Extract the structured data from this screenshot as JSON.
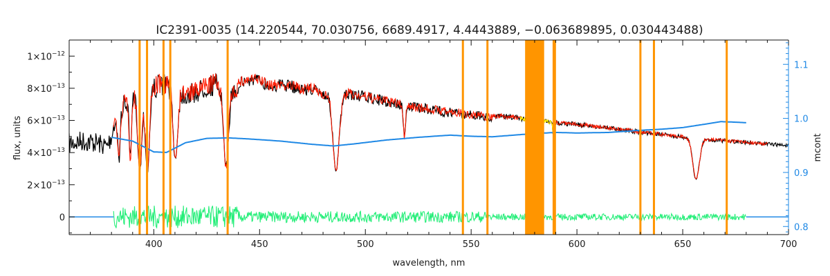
{
  "chart_data": {
    "type": "line",
    "title": "IC2391-0035    (14.220544, 70.030756, 6689.4917, 4.4443889, −0.063689895, 0.030443488)",
    "xlabel": "wavelength, nm",
    "ylabel": "flux, units",
    "y2label": "mcont",
    "xlim": [
      360,
      700
    ],
    "ylim": [
      -1.1e-13,
      1.1e-12
    ],
    "y2lim": [
      0.785,
      1.145
    ],
    "x_ticks": [
      "400",
      "450",
      "500",
      "550",
      "600",
      "650",
      "700"
    ],
    "y_ticks": [
      {
        "mant": "0",
        "exp": ""
      },
      {
        "mant": "2×10",
        "exp": "−13"
      },
      {
        "mant": "4×10",
        "exp": "−13"
      },
      {
        "mant": "6×10",
        "exp": "−13"
      },
      {
        "mant": "8×10",
        "exp": "−13"
      },
      {
        "mant": "1×10",
        "exp": "−12"
      }
    ],
    "y2_ticks": [
      "0.8",
      "0.9",
      "1.0",
      "1.1"
    ],
    "grid": false,
    "colors": {
      "observed": "#000000",
      "model": "#ff1a00",
      "residual": "#22ee77",
      "continuum": "#1e88e5",
      "mask": "#ff9500",
      "highlight": "#ffff00",
      "axis_right": "#1e88e5"
    },
    "masked_lines_nm": [
      393.3,
      396.8,
      404.6,
      407.8,
      434.9,
      546.1,
      557.7,
      588.99,
      589.6,
      630.0,
      636.4,
      670.8
    ],
    "masked_band_nm": [
      575.5,
      584.5
    ],
    "absorption_lines": [
      {
        "x": 383.5,
        "depth": 0.45,
        "w": 0.8
      },
      {
        "x": 388.9,
        "depth": 0.5,
        "w": 0.8
      },
      {
        "x": 393.4,
        "depth": 0.62,
        "w": 1.3
      },
      {
        "x": 397.0,
        "depth": 0.65,
        "w": 1.3
      },
      {
        "x": 410.2,
        "depth": 0.55,
        "w": 1.5
      },
      {
        "x": 434.1,
        "depth": 0.62,
        "w": 1.6
      },
      {
        "x": 486.1,
        "depth": 0.62,
        "w": 2.0
      },
      {
        "x": 518.4,
        "depth": 0.28,
        "w": 0.7
      },
      {
        "x": 589.0,
        "depth": 0.18,
        "w": 0.5
      },
      {
        "x": 656.3,
        "depth": 0.52,
        "w": 2.2
      }
    ],
    "series": [
      {
        "key": "observed",
        "x": [
          360,
          366,
          372,
          378,
          381,
          386,
          390,
          395,
          400,
          404,
          410,
          415,
          420,
          425,
          430,
          436,
          440,
          445,
          450,
          455,
          460,
          465,
          470,
          475,
          480,
          485,
          488,
          492,
          500,
          510,
          520,
          530,
          540,
          550,
          560,
          570,
          580,
          590,
          600,
          610,
          620,
          630,
          640,
          650,
          660,
          670,
          680,
          690,
          700
        ],
        "y": [
          5.2e-13,
          5.4e-13,
          5.3e-13,
          5e-13,
          6.2e-13,
          7.6e-13,
          8e-13,
          8.2e-13,
          8.7e-13,
          9e-13,
          8.7e-13,
          8.2e-13,
          8.4e-13,
          8.8e-13,
          9e-13,
          8.4e-13,
          8.7e-13,
          8.9e-13,
          8.9e-13,
          8.5e-13,
          8.6e-13,
          8.5e-13,
          8.3e-13,
          8.3e-13,
          8e-13,
          7.8e-13,
          7.7e-13,
          8e-13,
          7.8e-13,
          7.5e-13,
          7.2e-13,
          7e-13,
          6.8e-13,
          6.65e-13,
          6.45e-13,
          6.35e-13,
          6.15e-13,
          6e-13,
          5.9e-13,
          5.75e-13,
          5.6e-13,
          5.4e-13,
          5.25e-13,
          5.1e-13,
          4.95e-13,
          4.85e-13,
          4.75e-13,
          4.65e-13,
          4.55e-13
        ]
      },
      {
        "key": "continuum",
        "axis": "right",
        "x": [
          380,
          390,
          400,
          406,
          415,
          425,
          435,
          445,
          460,
          475,
          485,
          495,
          510,
          525,
          540,
          550,
          560,
          570,
          580,
          590,
          600,
          615,
          630,
          640,
          650,
          660,
          668,
          675,
          680
        ],
        "y": [
          0.965,
          0.958,
          0.938,
          0.937,
          0.955,
          0.963,
          0.964,
          0.962,
          0.958,
          0.952,
          0.949,
          0.953,
          0.96,
          0.965,
          0.969,
          0.967,
          0.966,
          0.969,
          0.972,
          0.974,
          0.973,
          0.974,
          0.978,
          0.98,
          0.983,
          0.989,
          0.994,
          0.993,
          0.992
        ]
      }
    ]
  }
}
